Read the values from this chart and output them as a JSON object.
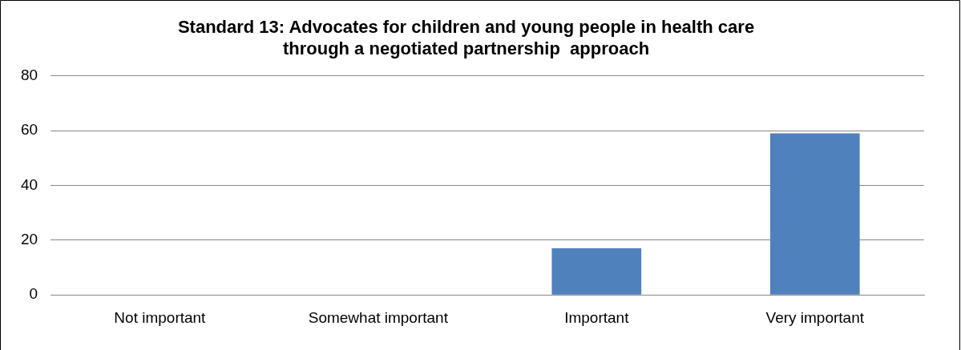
{
  "chart_data": {
    "type": "bar",
    "title": [
      "Standard 13: Advocates for children and young people in health care",
      "through a negotiated partnership  approach"
    ],
    "categories": [
      "Not important",
      "Somewhat important",
      "Important",
      "Very important"
    ],
    "values": [
      0,
      0,
      17,
      59
    ],
    "color": "#4f81bd",
    "ylim": [
      0,
      80
    ],
    "yticks": [
      0,
      20,
      40,
      60,
      80
    ],
    "grid": "y",
    "legend": false
  }
}
